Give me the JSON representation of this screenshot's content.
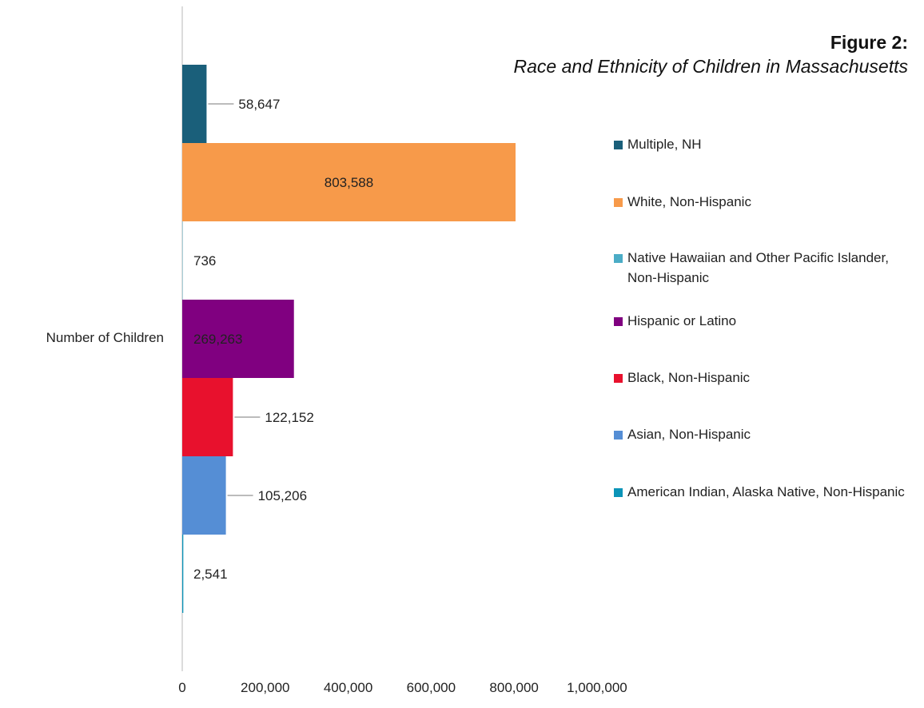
{
  "chart_data": {
    "type": "bar",
    "orientation": "horizontal",
    "title": "Figure 2:",
    "subtitle": "Race and Ethnicity of Children in Massachusetts",
    "categories": [
      "Number of Children"
    ],
    "xlim": [
      0,
      1000000
    ],
    "x_ticks": [
      "0",
      "200,000",
      "400,000",
      "600,000",
      "800,000",
      "1,000,000"
    ],
    "grid": false,
    "legend_position": "right",
    "series": [
      {
        "name": "Multiple, NH",
        "value": 58647,
        "label": "58,647",
        "color": "#1a5f7a"
      },
      {
        "name": "White, Non-Hispanic",
        "value": 803588,
        "label": "803,588",
        "color": "#f79a4a"
      },
      {
        "name": "Native Hawaiian and Other Pacific Islander, Non-Hispanic",
        "value": 736,
        "label": "736",
        "color": "#4bacc6"
      },
      {
        "name": "Hispanic or Latino",
        "value": 269263,
        "label": "269,263",
        "color": "#800080"
      },
      {
        "name": "Black, Non-Hispanic",
        "value": 122152,
        "label": "122,152",
        "color": "#e8112d"
      },
      {
        "name": "Asian, Non-Hispanic",
        "value": 105206,
        "label": "105,206",
        "color": "#558ed5"
      },
      {
        "name": "American Indian, Alaska Native, Non-Hispanic",
        "value": 2541,
        "label": "2,541",
        "color": "#0b94b8"
      }
    ]
  }
}
